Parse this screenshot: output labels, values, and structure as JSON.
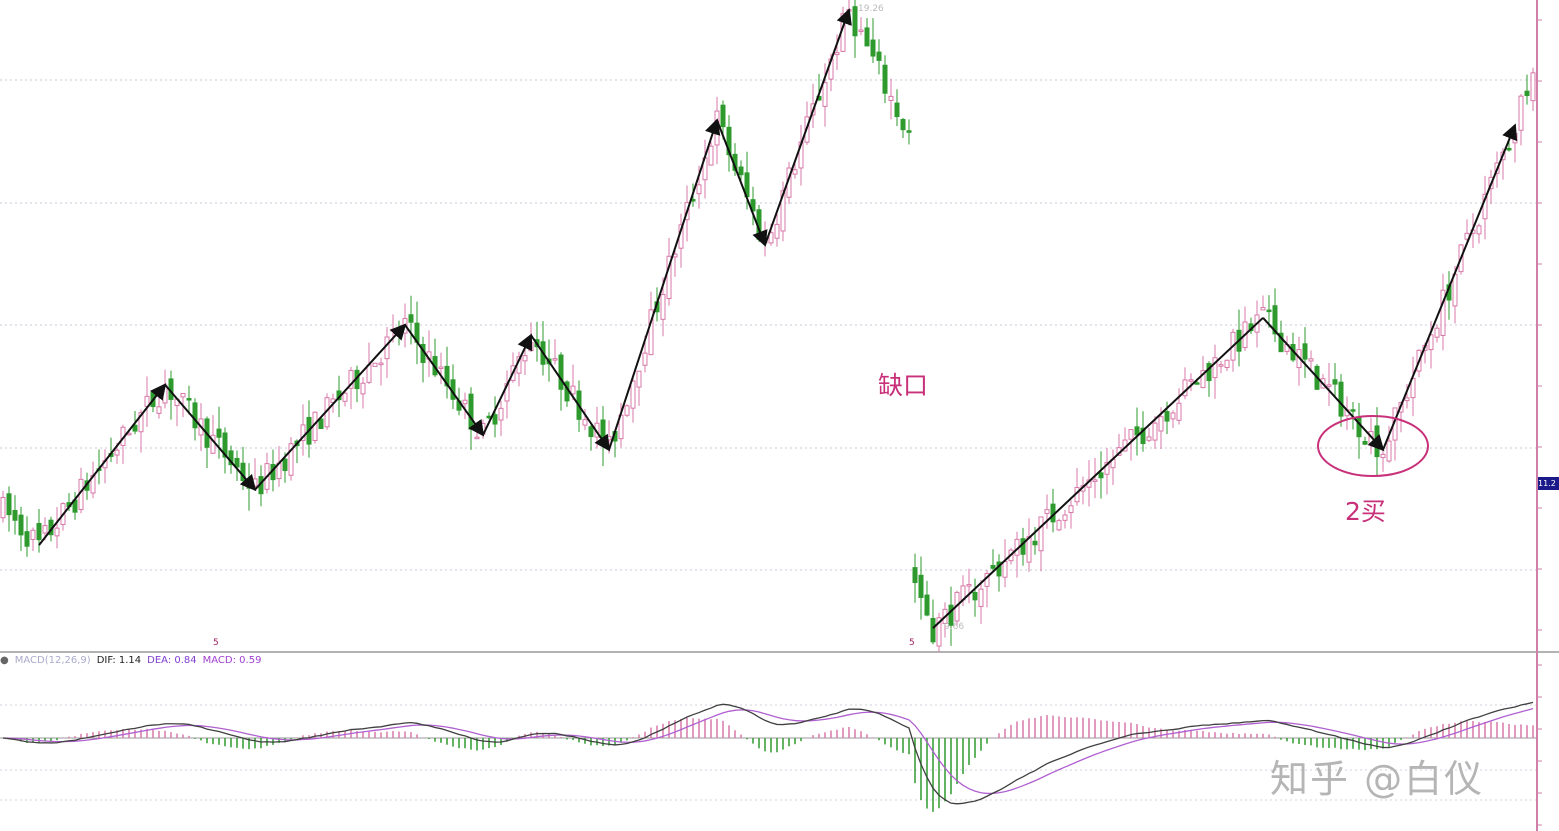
{
  "chart_data": {
    "type": "candlestick",
    "title": "",
    "grid": true,
    "high_label": "19.26",
    "low_label": "9.66",
    "price_path": [
      {
        "bar": 0,
        "price": 11.5,
        "arrow": false
      },
      {
        "bar": 6,
        "price": 10.95,
        "arrow": false
      },
      {
        "bar": 27,
        "price": 13.44,
        "arrow": true
      },
      {
        "bar": 42,
        "price": 11.81,
        "arrow": true
      },
      {
        "bar": 67,
        "price": 14.37,
        "arrow": true
      },
      {
        "bar": 80,
        "price": 12.66,
        "arrow": true
      },
      {
        "bar": 88,
        "price": 14.21,
        "arrow": true
      },
      {
        "bar": 101,
        "price": 12.43,
        "arrow": true
      },
      {
        "bar": 119,
        "price": 17.55,
        "arrow": true
      },
      {
        "bar": 127,
        "price": 15.61,
        "arrow": true
      },
      {
        "bar": 141,
        "price": 19.26,
        "arrow": true
      },
      {
        "bar": 151,
        "price": 17.3,
        "arrow": false,
        "gap_after": true
      },
      {
        "bar": 152,
        "price": 10.4,
        "arrow": false
      },
      {
        "bar": 155,
        "price": 9.66,
        "arrow": false
      },
      {
        "bar": 210,
        "price": 14.48,
        "line": true
      },
      {
        "bar": 230,
        "price": 12.43,
        "arrow": true
      },
      {
        "bar": 252,
        "price": 17.47,
        "arrow": true
      },
      {
        "bar": 255,
        "price": 18.5,
        "arrow": false
      }
    ],
    "annotations": [
      {
        "text": "缺口"
      },
      {
        "text": "2买"
      }
    ],
    "last_price_tag": "11.2",
    "period_markers": [
      "5",
      "5"
    ],
    "macd": {
      "name": "MACD(12,26,9)",
      "dif_label": "DIF: 1.14",
      "dea_label": "DEA: 0.84",
      "macd_label": "MACD: 0.59"
    }
  },
  "watermark": "知乎 @白仪",
  "colors": {
    "up": "#d878a8",
    "down": "#2e9a2e",
    "annotation": "#c8307a",
    "dif": "#404040",
    "dea": "#b060d0",
    "axis": "#d080a8",
    "price_tag": "#1a1a8a"
  }
}
